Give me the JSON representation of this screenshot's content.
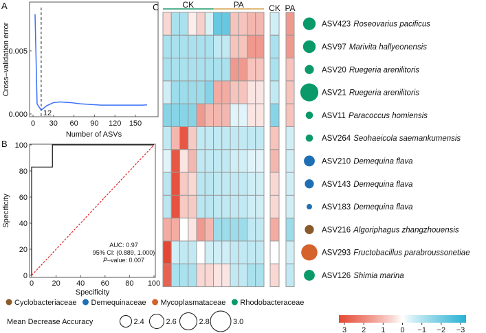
{
  "panel_labels": {
    "a": "A",
    "b": "B",
    "c": "C"
  },
  "chart_data": [
    {
      "type": "line",
      "panel": "A",
      "xlabel": "Number of ASVs",
      "ylabel": "Cross–validation error",
      "xticks": [
        "0",
        "30",
        "60",
        "90",
        "120",
        "150"
      ],
      "yticks": [
        "0.000",
        "0.005"
      ],
      "xlim": [
        -5,
        175
      ],
      "ylim": [
        -0.0002,
        0.0083
      ],
      "color": "#3a6ff7",
      "x": [
        3,
        6,
        12,
        20,
        30,
        40,
        55,
        70,
        85,
        100,
        115,
        130,
        145,
        160,
        167
      ],
      "y": [
        0.0079,
        0.0008,
        0.0003,
        0.00065,
        0.0009,
        0.00095,
        0.0009,
        0.0008,
        0.00075,
        0.0007,
        0.0007,
        0.0007,
        0.0007,
        0.0007,
        0.00072
      ],
      "annotation": {
        "x": 12,
        "label": "12"
      }
    },
    {
      "type": "line",
      "panel": "B",
      "xlabel": "Specificity",
      "ylabel": "Specificity",
      "xticks": [
        "0",
        "20",
        "40",
        "60",
        "80",
        "100"
      ],
      "yticks": [
        "0",
        "20",
        "40",
        "60",
        "80",
        "100"
      ],
      "xlim": [
        0,
        100
      ],
      "ylim": [
        0,
        100
      ],
      "x": [
        0,
        0,
        17,
        17,
        100
      ],
      "y": [
        0,
        83,
        83,
        100,
        100
      ],
      "diagonal_color": "#e02020",
      "annotations": {
        "auc": "AUC: 0.97",
        "ci": "95% CI: (0.889, 1.000)",
        "p_label": "P",
        "p_value": "–value: 0.007"
      }
    },
    {
      "type": "heatmap",
      "panel": "C",
      "groups": [
        {
          "name": "CK",
          "color": "#1a9a6c"
        },
        {
          "name": "PA",
          "color": "#d4a24a"
        }
      ],
      "summary_columns": [
        "CK",
        "PA"
      ],
      "range": [
        -3,
        3
      ],
      "colorbar_ticks": [
        "3",
        "2",
        "1",
        "0",
        "−1",
        "−2",
        "−3"
      ],
      "rows": [
        {
          "id": "ASV423",
          "taxon": "Roseovarius pacificus",
          "family": "Rhodobacteraceae",
          "mda": 2.7,
          "values": [
            0.5,
            -1,
            -1,
            0.2,
            0.6,
            -0.4,
            -2,
            -2,
            0.8,
            0.8,
            1,
            1
          ],
          "ck": -0.5,
          "pa": 1.5
        },
        {
          "id": "ASV97",
          "taxon": "Marivita hallyeonensis",
          "family": "Rhodobacteraceae",
          "mda": 2.7,
          "values": [
            -1,
            -1,
            -1,
            -1,
            -1,
            -1,
            -0.7,
            -0.7,
            0.8,
            0.8,
            1.5,
            1.5
          ],
          "ck": -1,
          "pa": 1.5
        },
        {
          "id": "ASV20",
          "taxon": "Ruegeria arenilitoris",
          "family": "Rhodobacteraceae",
          "mda": 2.5,
          "values": [
            -1,
            -1,
            -1,
            -1,
            -1,
            -1,
            -1,
            -1,
            1.5,
            1.5,
            0.8,
            0.8
          ],
          "ck": -1,
          "pa": 0.8
        },
        {
          "id": "ASV21",
          "taxon": "Ruegeria arenilitoris",
          "family": "Rhodobacteraceae",
          "mda": 3.0,
          "values": [
            -0.5,
            -1.2,
            -1.2,
            -1.2,
            -1.2,
            -1.5,
            1.2,
            1.2,
            0.8,
            0.8,
            0.3,
            0.3
          ],
          "ck": -0.7,
          "pa": 0.8
        },
        {
          "id": "ASV11",
          "taxon": "Paracoccus homiensis",
          "family": "Rhodobacteraceae",
          "mda": 2.4,
          "values": [
            -1.5,
            -1.5,
            -1.5,
            -1.5,
            1.5,
            1,
            1,
            1,
            -0.3,
            -0.3,
            0.3,
            0.3
          ],
          "ck": -1.5,
          "pa": 0.8
        },
        {
          "id": "ASV264",
          "taxon": "Seohaeicola saemankumensis",
          "family": "Rhodobacteraceae",
          "mda": 2.4,
          "values": [
            -0.7,
            1,
            2.7,
            0.7,
            -0.7,
            -0.7,
            -0.7,
            -0.7,
            -0.7,
            -0.7,
            -0.7,
            -0.7
          ],
          "ck": 0.8,
          "pa": -0.5
        },
        {
          "id": "ASV210",
          "taxon": "Demequina flava",
          "family": "Demequinaceae",
          "mda": 2.6,
          "values": [
            -0.3,
            2.7,
            0.3,
            1,
            -0.7,
            -0.7,
            -0.7,
            -0.7,
            -0.5,
            -0.5,
            -0.3,
            -0.3
          ],
          "ck": 1,
          "pa": -0.5
        },
        {
          "id": "ASV143",
          "taxon": "Demequina flava",
          "family": "Demequinaceae",
          "mda": 2.5,
          "values": [
            -0.8,
            2.8,
            0.7,
            0.5,
            -0.8,
            -0.8,
            -0.7,
            -0.7,
            -0.7,
            -0.7,
            -0.5,
            -0.5
          ],
          "ck": 0.5,
          "pa": -0.5
        },
        {
          "id": "ASV183",
          "taxon": "Demequina flava",
          "family": "Demequinaceae",
          "mda": 2.3,
          "values": [
            -0.8,
            2.8,
            0.7,
            0.7,
            -0.8,
            -0.8,
            -0.7,
            -0.7,
            -0.7,
            -0.7,
            -0.5,
            -0.5
          ],
          "ck": 0.5,
          "pa": -0.5
        },
        {
          "id": "ASV216",
          "taxon": "Algoriphagus zhangzhouensis",
          "family": "Cyclobacteriaceae",
          "mda": 2.5,
          "values": [
            1.2,
            1.2,
            0,
            0.3,
            1.5,
            1,
            -1.2,
            -1.2,
            -1.2,
            -1.2,
            -0.7,
            -0.7
          ],
          "ck": 1.2,
          "pa": -1.2
        },
        {
          "id": "ASV293",
          "taxon": "Fructobacillus parabroussonetiae",
          "family": "Mycoplasmataceae",
          "mda": 2.9,
          "values": [
            3,
            -0.5,
            -0.7,
            -0.7,
            0,
            -0.5,
            -0.5,
            -0.5,
            -0.7,
            -0.7,
            -0.7,
            -0.7
          ],
          "ck": 0,
          "pa": -0.5
        },
        {
          "id": "ASV126",
          "taxon": "Shimia marina",
          "family": "Rhodobacteraceae",
          "mda": 2.6,
          "values": [
            2.5,
            -1,
            -1,
            -1,
            0.5,
            0.5,
            0.3,
            0.3,
            -0.7,
            -0.7,
            -1,
            -1
          ],
          "ck": 0.5,
          "pa": -0.7
        }
      ]
    }
  ],
  "family_legend": [
    {
      "name": "Cyclobacteriaceae",
      "color": "#8a5a2a"
    },
    {
      "name": "Demequinaceae",
      "color": "#1f6fb5"
    },
    {
      "name": "Mycoplasmataceae",
      "color": "#d4622a"
    },
    {
      "name": "Rhodobacteraceae",
      "color": "#0a9a6a"
    }
  ],
  "mda_legend": {
    "title": "Mean Decrease Accuracy",
    "values": [
      "2.4",
      "2.6",
      "2.8",
      "3.0"
    ]
  }
}
